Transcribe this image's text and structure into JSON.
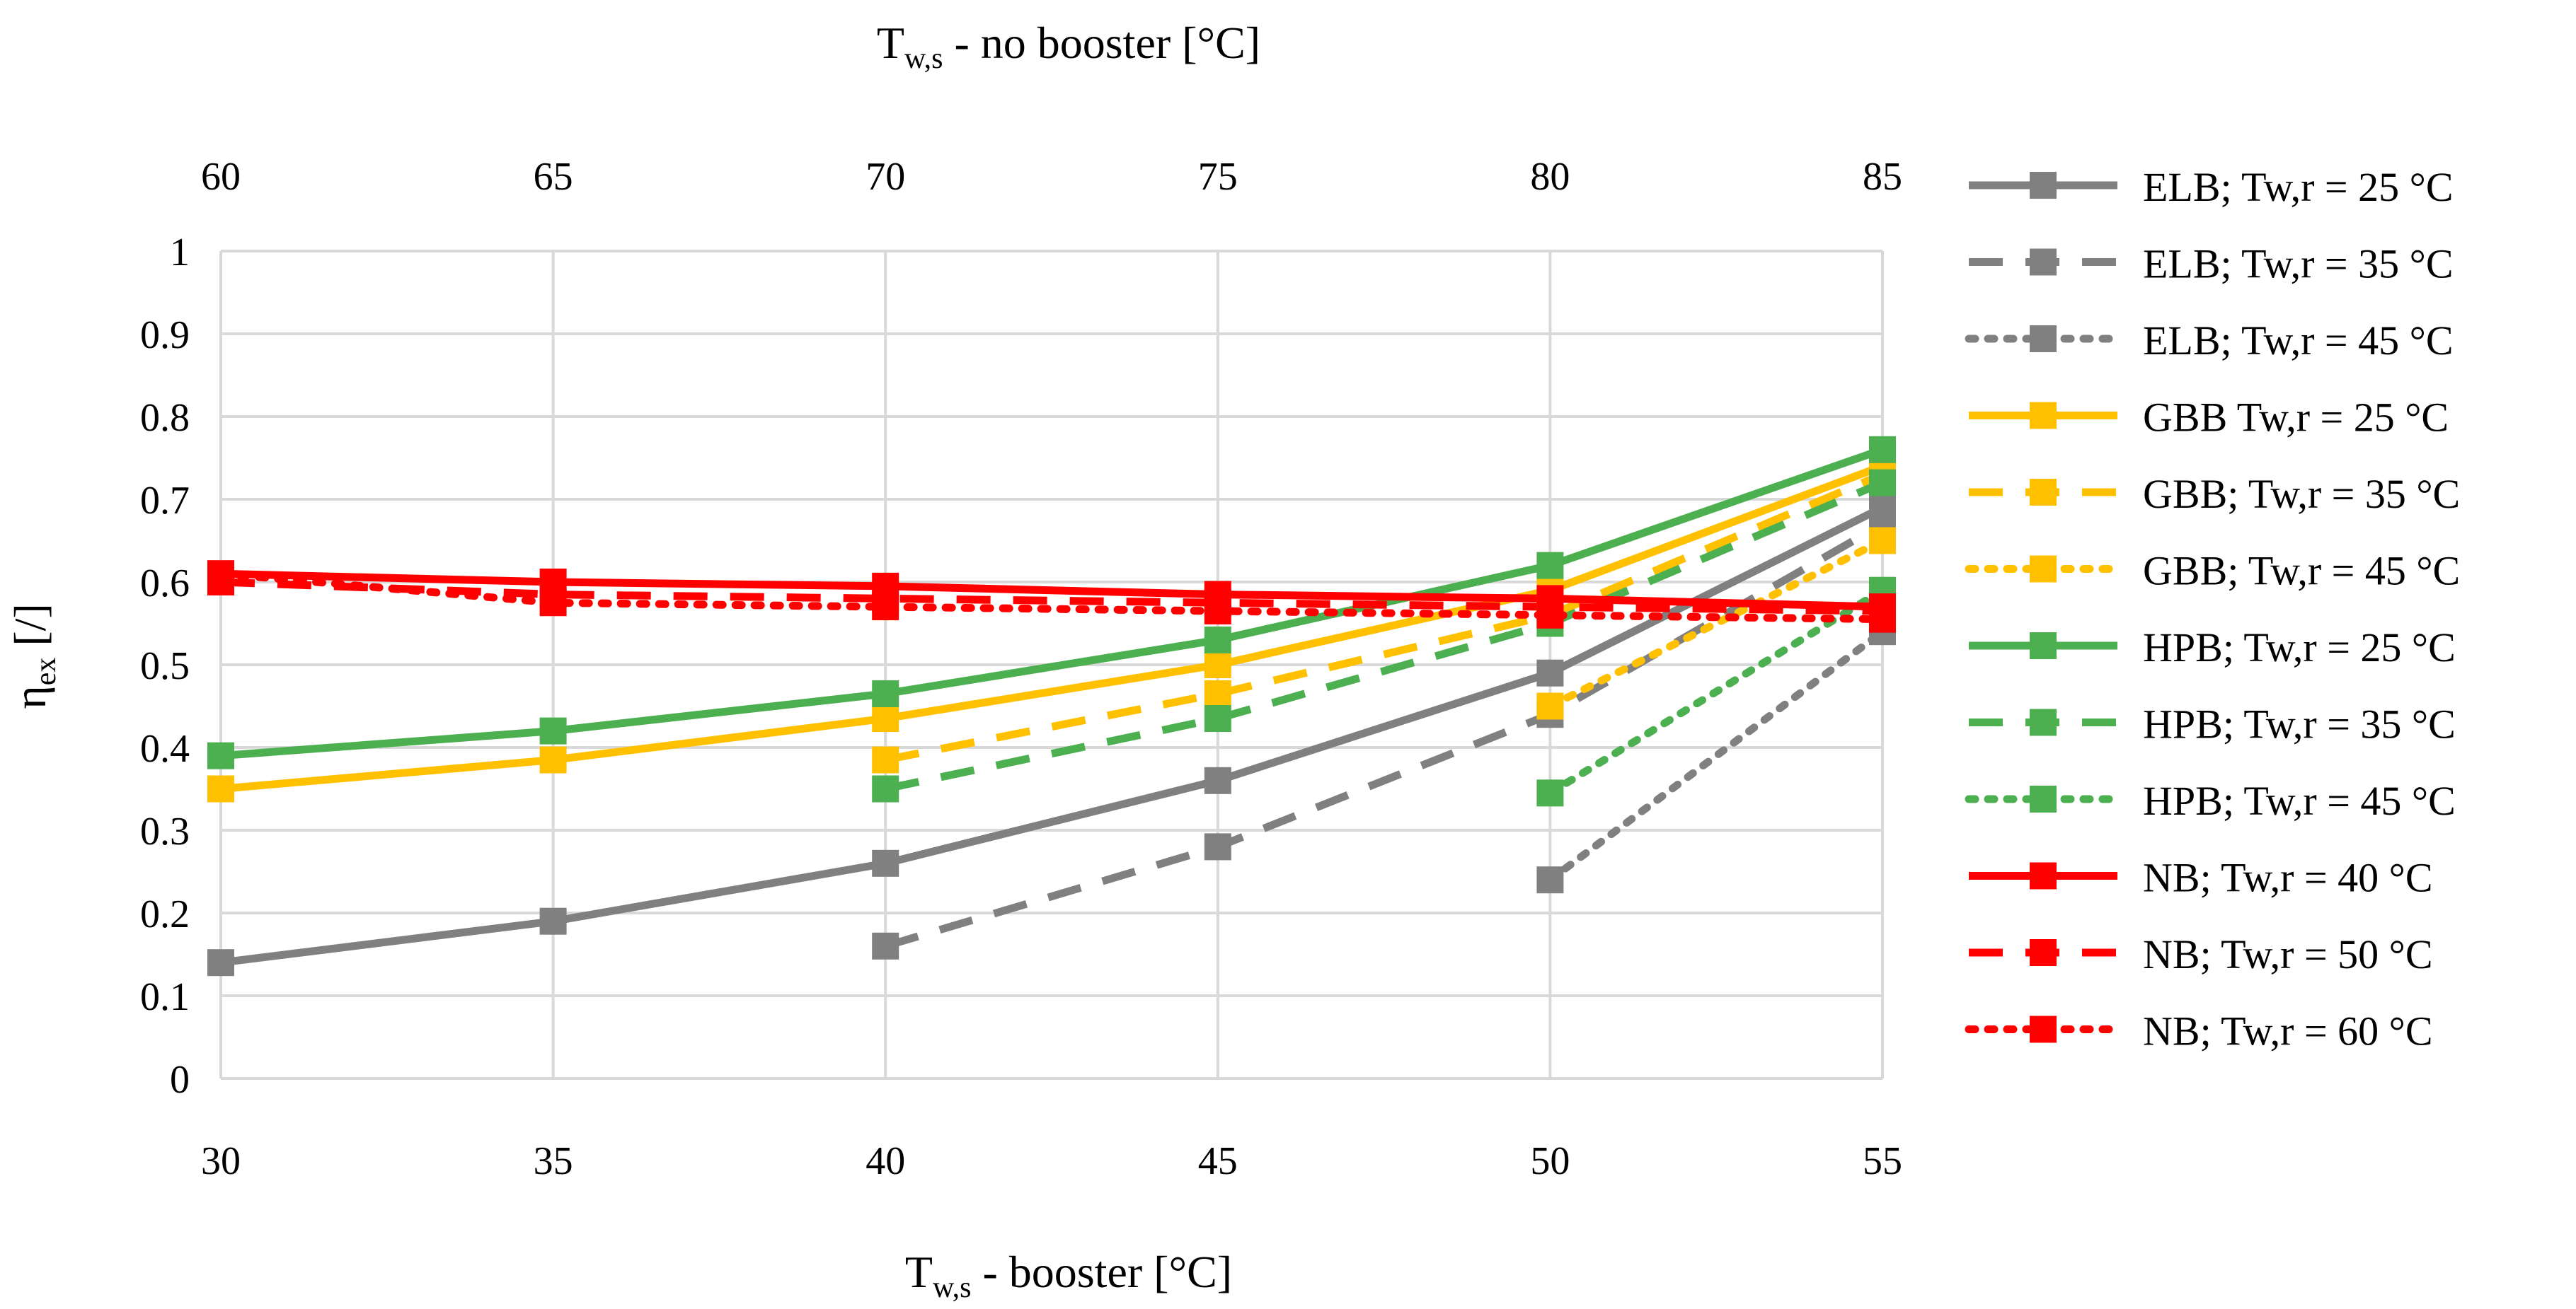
{
  "chart_data": {
    "type": "line",
    "title": "",
    "xlabel": "T_w,s - booster [°C]",
    "xlabel_parts": {
      "base": "T",
      "sub": "w,s",
      "rest": " - booster [°C]"
    },
    "x2label": "T_w,s - no booster [°C]",
    "x2label_parts": {
      "base": "T",
      "sub": "w,s",
      "rest": " - no booster [°C]"
    },
    "ylabel": "η_ex [/]",
    "ylabel_parts": {
      "base": "η",
      "sub": "ex",
      "rest": " [/]"
    },
    "x_ticks": [
      "30",
      "35",
      "40",
      "45",
      "50",
      "55"
    ],
    "x2_ticks": [
      "60",
      "65",
      "70",
      "75",
      "80",
      "85"
    ],
    "y_ticks": [
      "0",
      "0.1",
      "0.2",
      "0.3",
      "0.4",
      "0.5",
      "0.6",
      "0.7",
      "0.8",
      "0.9",
      "1"
    ],
    "xlim": [
      30,
      55
    ],
    "ylim": [
      0,
      1
    ],
    "grid": true,
    "legend_position": "right",
    "colors": {
      "gray": "#808080",
      "yellow": "#FFC000",
      "green": "#4CAF50",
      "red": "#FF0000",
      "grid": "#D9D9D9"
    },
    "series": [
      {
        "name": "ELB; Tw,r = 25 °C",
        "color": "#808080",
        "style": "solid",
        "x": [
          30,
          35,
          40,
          45,
          50,
          55
        ],
        "values": [
          0.14,
          0.19,
          0.26,
          0.36,
          0.49,
          0.69
        ]
      },
      {
        "name": "ELB; Tw,r = 35 °C",
        "color": "#808080",
        "style": "dashed",
        "x": [
          40,
          45,
          50,
          55
        ],
        "values": [
          0.16,
          0.28,
          0.44,
          0.67
        ]
      },
      {
        "name": "ELB; Tw,r = 45 °C",
        "color": "#808080",
        "style": "dotted",
        "x": [
          50,
          55
        ],
        "values": [
          0.24,
          0.54
        ]
      },
      {
        "name": "GBB Tw,r = 25 °C",
        "color": "#FFC000",
        "style": "solid",
        "x": [
          30,
          35,
          40,
          45,
          50,
          55
        ],
        "values": [
          0.35,
          0.385,
          0.435,
          0.5,
          0.59,
          0.74
        ]
      },
      {
        "name": "GBB; Tw,r = 35 °C",
        "color": "#FFC000",
        "style": "dashed",
        "x": [
          40,
          45,
          50,
          55
        ],
        "values": [
          0.385,
          0.465,
          0.56,
          0.73
        ]
      },
      {
        "name": "GBB; Tw,r = 45 °C",
        "color": "#FFC000",
        "style": "dotted",
        "x": [
          50,
          55
        ],
        "values": [
          0.45,
          0.65
        ]
      },
      {
        "name": "HPB; Tw,r = 25 °C",
        "color": "#4CAF50",
        "style": "solid",
        "x": [
          30,
          35,
          40,
          45,
          50,
          55
        ],
        "values": [
          0.39,
          0.42,
          0.465,
          0.53,
          0.62,
          0.76
        ]
      },
      {
        "name": "HPB; Tw,r = 35 °C",
        "color": "#4CAF50",
        "style": "dashed",
        "x": [
          40,
          45,
          50,
          55
        ],
        "values": [
          0.35,
          0.435,
          0.55,
          0.72
        ]
      },
      {
        "name": "HPB; Tw,r = 45 °C",
        "color": "#4CAF50",
        "style": "dotted",
        "x": [
          50,
          55
        ],
        "values": [
          0.345,
          0.59
        ]
      },
      {
        "name": "NB; Tw,r = 40 °C",
        "color": "#FF0000",
        "style": "solid",
        "x": [
          30,
          35,
          40,
          45,
          50,
          55
        ],
        "values": [
          0.61,
          0.6,
          0.595,
          0.585,
          0.58,
          0.57
        ]
      },
      {
        "name": "NB; Tw,r = 50 °C",
        "color": "#FF0000",
        "style": "dashed",
        "x": [
          30,
          35,
          40,
          45,
          50,
          55
        ],
        "values": [
          0.6,
          0.585,
          0.58,
          0.575,
          0.57,
          0.565
        ]
      },
      {
        "name": "NB; Tw,r = 60 °C",
        "color": "#FF0000",
        "style": "dotted",
        "x": [
          30,
          35,
          40,
          45,
          50,
          55
        ],
        "values": [
          0.61,
          0.575,
          0.57,
          0.565,
          0.56,
          0.555
        ]
      }
    ]
  }
}
